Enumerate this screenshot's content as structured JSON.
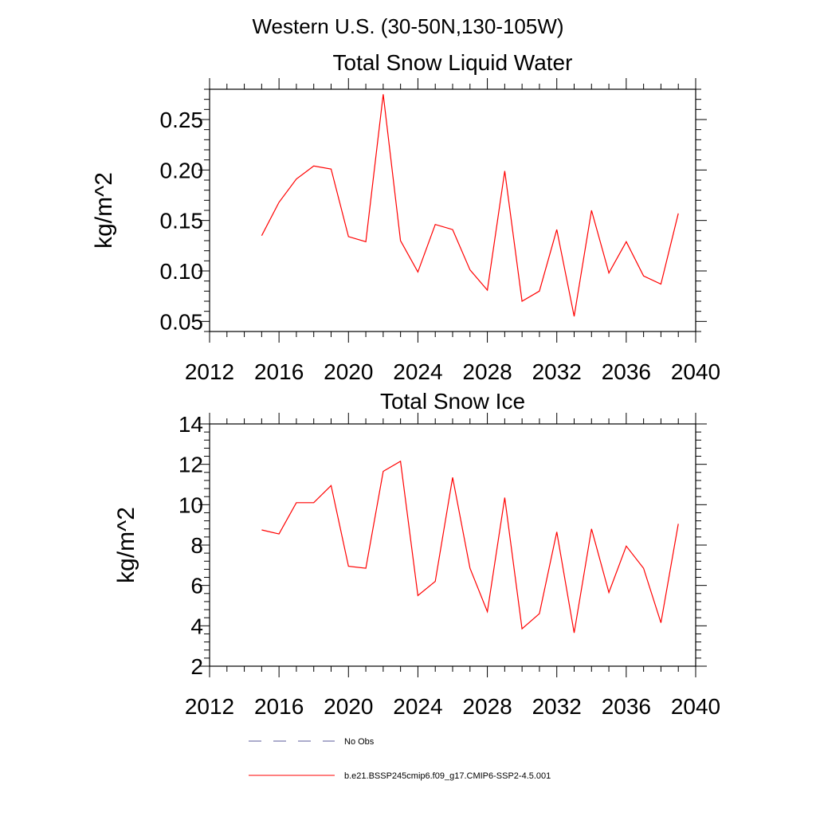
{
  "header": {
    "title": "Western U.S. (30-50N,130-105W)"
  },
  "chart_data": [
    {
      "type": "line",
      "title": "Total Snow Liquid Water",
      "xlabel": "",
      "ylabel": "kg/m^2",
      "xlim": [
        2012,
        2040
      ],
      "ylim": [
        0.04,
        0.28
      ],
      "x_ticks": [
        2012,
        2016,
        2020,
        2024,
        2028,
        2032,
        2036,
        2040
      ],
      "y_ticks": [
        0.05,
        0.1,
        0.15,
        0.2,
        0.25
      ],
      "y_tick_labels": [
        "0.05",
        "0.10",
        "0.15",
        "0.20",
        "0.25"
      ],
      "grid": false,
      "series": [
        {
          "name": "b.e21.BSSP245cmip6.f09_g17.CMIP6-SSP2-4.5.001",
          "color": "#ff0000",
          "x": [
            2015,
            2016,
            2017,
            2018,
            2019,
            2020,
            2021,
            2022,
            2023,
            2024,
            2025,
            2026,
            2027,
            2028,
            2029,
            2030,
            2031,
            2032,
            2033,
            2034,
            2035,
            2036,
            2037,
            2038,
            2039
          ],
          "y": [
            0.135,
            0.168,
            0.191,
            0.204,
            0.201,
            0.134,
            0.129,
            0.275,
            0.13,
            0.099,
            0.146,
            0.141,
            0.101,
            0.081,
            0.199,
            0.07,
            0.08,
            0.141,
            0.055,
            0.16,
            0.098,
            0.129,
            0.095,
            0.087,
            0.157
          ]
        }
      ]
    },
    {
      "type": "line",
      "title": "Total Snow Ice",
      "xlabel": "",
      "ylabel": "kg/m^2",
      "xlim": [
        2012,
        2040
      ],
      "ylim": [
        2,
        14
      ],
      "x_ticks": [
        2012,
        2016,
        2020,
        2024,
        2028,
        2032,
        2036,
        2040
      ],
      "y_ticks": [
        2,
        4,
        6,
        8,
        10,
        12,
        14
      ],
      "y_tick_labels": [
        "2",
        "4",
        "6",
        "8",
        "10",
        "12",
        "14"
      ],
      "grid": false,
      "series": [
        {
          "name": "b.e21.BSSP245cmip6.f09_g17.CMIP6-SSP2-4.5.001",
          "color": "#ff0000",
          "x": [
            2015,
            2016,
            2017,
            2018,
            2019,
            2020,
            2021,
            2022,
            2023,
            2024,
            2025,
            2026,
            2027,
            2028,
            2029,
            2030,
            2031,
            2032,
            2033,
            2034,
            2035,
            2036,
            2037,
            2038,
            2039
          ],
          "y": [
            8.75,
            8.55,
            10.1,
            10.1,
            10.95,
            6.95,
            6.85,
            11.65,
            12.15,
            5.5,
            6.2,
            11.35,
            6.85,
            4.7,
            10.35,
            3.85,
            4.6,
            8.65,
            3.65,
            8.8,
            5.65,
            7.95,
            6.85,
            4.15,
            9.05
          ]
        }
      ]
    }
  ],
  "legend": {
    "placement": "bottom",
    "items": [
      {
        "label": "No Obs",
        "color": "#5a5a9a",
        "style": "dashed"
      },
      {
        "label": "b.e21.BSSP245cmip6.f09_g17.CMIP6-SSP2-4.5.001",
        "color": "#ff0000",
        "style": "solid"
      }
    ]
  }
}
